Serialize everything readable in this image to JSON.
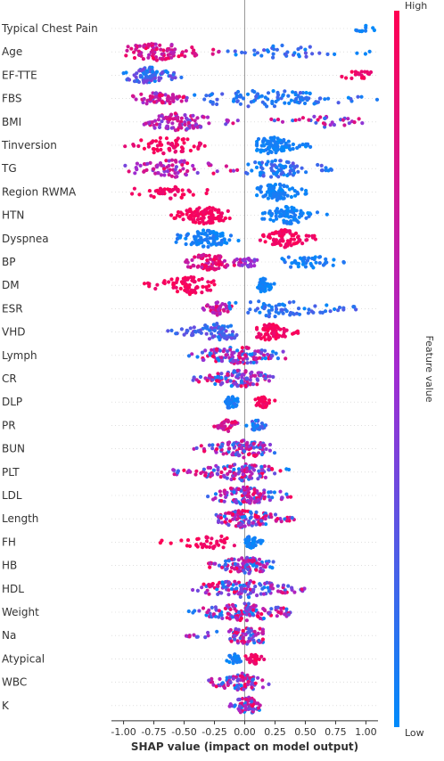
{
  "chart_data": {
    "type": "scatter",
    "subtype": "shap-beeswarm",
    "title": "",
    "xlabel": "SHAP value (impact on model output)",
    "xlim": [
      -1.1,
      1.1
    ],
    "xticks": [
      "-1.00",
      "-0.75",
      "-0.50",
      "-0.25",
      "0.00",
      "0.25",
      "0.50",
      "0.75",
      "1.00"
    ],
    "xtick_values": [
      -1.0,
      -0.75,
      -0.5,
      -0.25,
      0.0,
      0.25,
      0.5,
      0.75,
      1.0
    ],
    "colorbar": {
      "label": "Feature value",
      "high": "High",
      "low": "Low",
      "low_color": "#008bfb",
      "high_color": "#ff0052"
    },
    "features": [
      {
        "name": "Typical Chest Pain",
        "clusters": [
          {
            "min": 0.88,
            "max": 1.08,
            "center": 0.98,
            "n": 10,
            "vlo": 0.0,
            "vhi": 0.1
          }
        ]
      },
      {
        "name": "Age",
        "clusters": [
          {
            "min": -1.0,
            "max": -0.2,
            "center": -0.72,
            "n": 95,
            "vlo": 0.55,
            "vhi": 1.0
          },
          {
            "min": -0.2,
            "max": 1.1,
            "center": 0.3,
            "n": 40,
            "vlo": 0.0,
            "vhi": 0.3
          }
        ]
      },
      {
        "name": "EF-TTE",
        "clusters": [
          {
            "min": -1.0,
            "max": -0.52,
            "center": -0.8,
            "n": 85,
            "vlo": 0.0,
            "vhi": 0.4
          },
          {
            "min": 0.7,
            "max": 1.1,
            "center": 0.95,
            "n": 20,
            "vlo": 0.85,
            "vhi": 1.0
          }
        ]
      },
      {
        "name": "FBS",
        "clusters": [
          {
            "min": -1.0,
            "max": -0.45,
            "center": -0.75,
            "n": 35,
            "vlo": 0.3,
            "vhi": 0.8
          },
          {
            "min": -0.9,
            "max": -0.45,
            "center": -0.62,
            "n": 30,
            "vlo": 0.6,
            "vhi": 1.0
          },
          {
            "min": -0.45,
            "max": 1.1,
            "center": 0.15,
            "n": 100,
            "vlo": 0.0,
            "vhi": 0.25
          }
        ]
      },
      {
        "name": "BMI",
        "clusters": [
          {
            "min": -0.85,
            "max": -0.05,
            "center": -0.55,
            "n": 95,
            "vlo": 0.3,
            "vhi": 0.9
          },
          {
            "min": 0.1,
            "max": 1.1,
            "center": 0.6,
            "n": 35,
            "vlo": 0.05,
            "vhi": 0.95
          }
        ]
      },
      {
        "name": "Tinversion",
        "clusters": [
          {
            "min": -1.0,
            "max": -0.3,
            "center": -0.65,
            "n": 60,
            "vlo": 0.85,
            "vhi": 1.0
          },
          {
            "min": 0.1,
            "max": 0.55,
            "center": 0.22,
            "n": 95,
            "vlo": 0.0,
            "vhi": 0.1
          }
        ]
      },
      {
        "name": "TG",
        "clusters": [
          {
            "min": -1.0,
            "max": -0.05,
            "center": -0.6,
            "n": 75,
            "vlo": 0.35,
            "vhi": 1.0
          },
          {
            "min": 0.0,
            "max": 0.78,
            "center": 0.25,
            "n": 85,
            "vlo": 0.0,
            "vhi": 0.3
          }
        ]
      },
      {
        "name": "Region RWMA",
        "clusters": [
          {
            "min": -1.0,
            "max": -0.25,
            "center": -0.6,
            "n": 45,
            "vlo": 0.85,
            "vhi": 1.0
          },
          {
            "min": 0.1,
            "max": 0.52,
            "center": 0.25,
            "n": 90,
            "vlo": 0.0,
            "vhi": 0.1
          }
        ]
      },
      {
        "name": "HTN",
        "clusters": [
          {
            "min": -0.62,
            "max": -0.12,
            "center": -0.33,
            "n": 105,
            "vlo": 0.9,
            "vhi": 1.0
          },
          {
            "min": 0.1,
            "max": 0.68,
            "center": 0.35,
            "n": 75,
            "vlo": 0.0,
            "vhi": 0.12
          }
        ]
      },
      {
        "name": "Dyspnea",
        "clusters": [
          {
            "min": -0.62,
            "max": -0.05,
            "center": -0.32,
            "n": 95,
            "vlo": 0.0,
            "vhi": 0.12
          },
          {
            "min": 0.12,
            "max": 0.6,
            "center": 0.32,
            "n": 85,
            "vlo": 0.88,
            "vhi": 1.0
          }
        ]
      },
      {
        "name": "BP",
        "clusters": [
          {
            "min": -0.5,
            "max": -0.03,
            "center": -0.3,
            "n": 80,
            "vlo": 0.6,
            "vhi": 1.0
          },
          {
            "min": -0.1,
            "max": 0.15,
            "center": 0.03,
            "n": 25,
            "vlo": 0.3,
            "vhi": 0.6
          },
          {
            "min": 0.3,
            "max": 0.85,
            "center": 0.5,
            "n": 45,
            "vlo": 0.0,
            "vhi": 0.15
          }
        ]
      },
      {
        "name": "DM",
        "clusters": [
          {
            "min": -0.85,
            "max": -0.25,
            "center": -0.45,
            "n": 70,
            "vlo": 0.88,
            "vhi": 1.0
          },
          {
            "min": 0.08,
            "max": 0.25,
            "center": 0.15,
            "n": 45,
            "vlo": 0.0,
            "vhi": 0.1
          }
        ]
      },
      {
        "name": "ESR",
        "clusters": [
          {
            "min": -0.35,
            "max": -0.1,
            "center": -0.22,
            "n": 40,
            "vlo": 0.5,
            "vhi": 1.0
          },
          {
            "min": -0.15,
            "max": 1.05,
            "center": 0.2,
            "n": 70,
            "vlo": 0.0,
            "vhi": 0.25
          }
        ]
      },
      {
        "name": "VHD",
        "clusters": [
          {
            "min": -0.65,
            "max": -0.05,
            "center": -0.22,
            "n": 85,
            "vlo": 0.05,
            "vhi": 0.4
          },
          {
            "min": 0.1,
            "max": 0.45,
            "center": 0.2,
            "n": 75,
            "vlo": 0.88,
            "vhi": 1.0
          }
        ]
      },
      {
        "name": "Lymph",
        "clusters": [
          {
            "min": -0.5,
            "max": 0.35,
            "center": -0.05,
            "n": 120,
            "vlo": 0.0,
            "vhi": 1.0
          }
        ]
      },
      {
        "name": "CR",
        "clusters": [
          {
            "min": -0.45,
            "max": 0.25,
            "center": -0.05,
            "n": 110,
            "vlo": 0.0,
            "vhi": 1.0
          }
        ]
      },
      {
        "name": "DLP",
        "clusters": [
          {
            "min": -0.2,
            "max": -0.05,
            "center": -0.12,
            "n": 40,
            "vlo": 0.0,
            "vhi": 0.12
          },
          {
            "min": 0.08,
            "max": 0.25,
            "center": 0.15,
            "n": 35,
            "vlo": 0.88,
            "vhi": 1.0
          }
        ]
      },
      {
        "name": "PR",
        "clusters": [
          {
            "min": -0.28,
            "max": -0.05,
            "center": -0.14,
            "n": 35,
            "vlo": 0.6,
            "vhi": 1.0
          },
          {
            "min": 0.0,
            "max": 0.18,
            "center": 0.1,
            "n": 30,
            "vlo": 0.0,
            "vhi": 0.3
          }
        ]
      },
      {
        "name": "BUN",
        "clusters": [
          {
            "min": -0.45,
            "max": 0.25,
            "center": 0.0,
            "n": 100,
            "vlo": 0.0,
            "vhi": 1.0
          }
        ]
      },
      {
        "name": "PLT",
        "clusters": [
          {
            "min": -0.6,
            "max": 0.38,
            "center": -0.03,
            "n": 115,
            "vlo": 0.0,
            "vhi": 1.0
          }
        ]
      },
      {
        "name": "LDL",
        "clusters": [
          {
            "min": -0.35,
            "max": 0.38,
            "center": 0.0,
            "n": 110,
            "vlo": 0.0,
            "vhi": 1.0
          }
        ]
      },
      {
        "name": "Length",
        "clusters": [
          {
            "min": -0.25,
            "max": 0.42,
            "center": 0.0,
            "n": 115,
            "vlo": 0.0,
            "vhi": 1.0
          }
        ]
      },
      {
        "name": "FH",
        "clusters": [
          {
            "min": -0.7,
            "max": -0.05,
            "center": -0.25,
            "n": 40,
            "vlo": 0.88,
            "vhi": 1.0
          },
          {
            "min": 0.0,
            "max": 0.15,
            "center": 0.05,
            "n": 40,
            "vlo": 0.0,
            "vhi": 0.1
          }
        ]
      },
      {
        "name": "HB",
        "clusters": [
          {
            "min": -0.3,
            "max": 0.25,
            "center": 0.0,
            "n": 110,
            "vlo": 0.0,
            "vhi": 1.0
          }
        ]
      },
      {
        "name": "HDL",
        "clusters": [
          {
            "min": -0.45,
            "max": 0.52,
            "center": 0.0,
            "n": 120,
            "vlo": 0.0,
            "vhi": 1.0
          }
        ]
      },
      {
        "name": "Weight",
        "clusters": [
          {
            "min": -0.5,
            "max": 0.38,
            "center": 0.0,
            "n": 120,
            "vlo": 0.0,
            "vhi": 1.0
          }
        ]
      },
      {
        "name": "Na",
        "clusters": [
          {
            "min": -0.5,
            "max": 0.15,
            "center": 0.03,
            "n": 80,
            "vlo": 0.0,
            "vhi": 1.0
          }
        ]
      },
      {
        "name": "Atypical",
        "clusters": [
          {
            "min": -0.15,
            "max": -0.02,
            "center": -0.08,
            "n": 30,
            "vlo": 0.0,
            "vhi": 0.12
          },
          {
            "min": 0.0,
            "max": 0.18,
            "center": 0.08,
            "n": 30,
            "vlo": 0.85,
            "vhi": 1.0
          }
        ]
      },
      {
        "name": "WBC",
        "clusters": [
          {
            "min": -0.3,
            "max": 0.22,
            "center": -0.02,
            "n": 80,
            "vlo": 0.0,
            "vhi": 1.0
          }
        ]
      },
      {
        "name": "K",
        "clusters": [
          {
            "min": -0.15,
            "max": 0.15,
            "center": 0.02,
            "n": 70,
            "vlo": 0.0,
            "vhi": 1.0
          }
        ]
      }
    ]
  }
}
